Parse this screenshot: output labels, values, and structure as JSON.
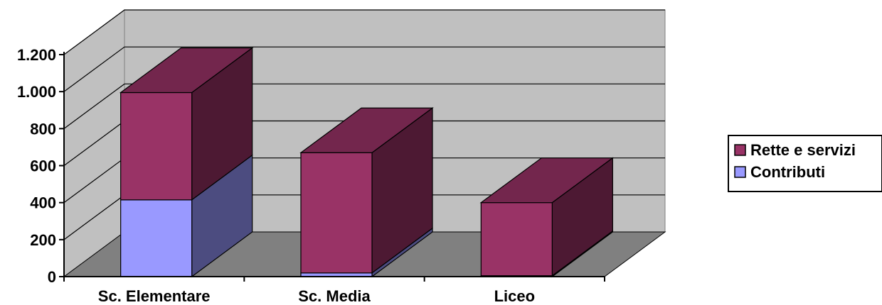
{
  "chart_data": {
    "type": "bar",
    "stacked": true,
    "three_d": true,
    "categories": [
      "Sc. Elementare",
      "Sc. Media",
      "Liceo"
    ],
    "series": [
      {
        "name": "Contributi",
        "values": [
          415,
          20,
          5
        ]
      },
      {
        "name": "Rette e servizi",
        "values": [
          580,
          650,
          395
        ]
      }
    ],
    "ylim": [
      0,
      1200
    ],
    "yticks": [
      0,
      200,
      400,
      600,
      800,
      1000,
      1200
    ],
    "ytick_labels": [
      "0",
      "200",
      "400",
      "600",
      "800",
      "1.000",
      "1.200"
    ],
    "grid": true,
    "legend_position": "right",
    "legend_order": [
      "Rette e servizi",
      "Contributi"
    ],
    "colors": {
      "Contributi": {
        "front": "#9999ff",
        "side": "#4c4c80",
        "top": "#7373c0"
      },
      "Rette e servizi": {
        "front": "#993366",
        "side": "#4d1933",
        "top": "#73264d"
      },
      "wall": "#c0c0c0",
      "floor": "#808080",
      "grid": "#000000"
    }
  }
}
